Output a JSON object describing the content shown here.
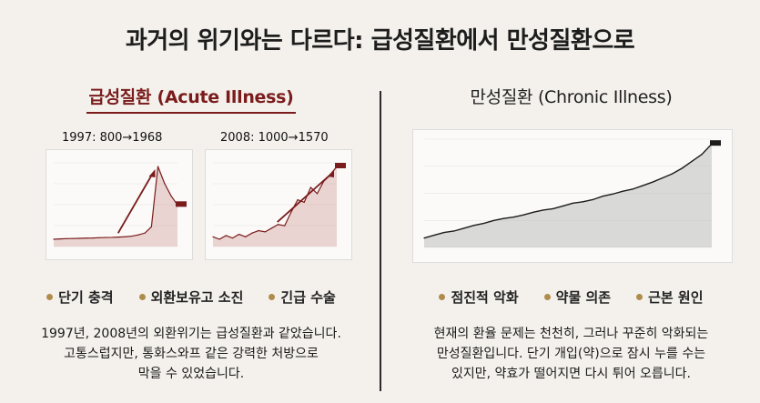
{
  "title": "과거의 위기와는 다르다: 급성질환에서 만성질환으로",
  "left": {
    "heading": "급성질환 (Acute Illness)",
    "charts": [
      {
        "caption": "1997: 800→1968"
      },
      {
        "caption": "2008: 1000→1570"
      }
    ],
    "bullets": [
      "단기 충격",
      "외환보유고 소진",
      "긴급 수술"
    ],
    "body": [
      "1997년, 2008년의 외환위기는 급성질환과 같았습니다.",
      "고통스럽지만, 통화스와프 같은 강력한 처방으로",
      "막을 수 있었습니다."
    ]
  },
  "right": {
    "heading": "만성질환 (Chronic Illness)",
    "bullets": [
      "점진적 악화",
      "약물 의존",
      "근본 원인"
    ],
    "body": [
      "현재의 환율 문제는 천천히, 그러나 꾸준히 악화되는",
      "만성질환입니다. 단기 개입(약)으로 잠시 누를 수는",
      "있지만, 약효가 떨어지면 다시 튀어 오릅니다."
    ]
  },
  "colors": {
    "accent": "#7a1c1c",
    "bullet": "#b08c4c"
  },
  "chart_data": [
    {
      "type": "line",
      "title": "1997: 800→1968",
      "x": [
        0,
        1,
        2,
        3,
        4,
        5,
        6,
        7,
        8,
        9,
        10,
        11,
        12,
        13,
        14,
        15,
        16,
        17,
        18,
        19
      ],
      "values": [
        800,
        805,
        810,
        812,
        815,
        818,
        820,
        825,
        828,
        830,
        835,
        840,
        850,
        870,
        900,
        1000,
        1968,
        1700,
        1500,
        1350
      ]
    },
    {
      "type": "line",
      "title": "2008: 1000→1570",
      "x": [
        0,
        1,
        2,
        3,
        4,
        5,
        6,
        7,
        8,
        9,
        10,
        11,
        12,
        13,
        14,
        15,
        16,
        17,
        18,
        19
      ],
      "values": [
        1000,
        980,
        1010,
        990,
        1020,
        1000,
        1030,
        1050,
        1040,
        1070,
        1100,
        1090,
        1200,
        1300,
        1280,
        1400,
        1350,
        1450,
        1500,
        1570
      ]
    },
    {
      "type": "area",
      "title": "",
      "x": [
        0,
        1,
        2,
        3,
        4,
        5,
        6,
        7,
        8,
        9,
        10,
        11,
        12,
        13,
        14,
        15,
        16,
        17,
        18,
        19,
        20,
        21,
        22,
        23,
        24,
        25,
        26,
        27,
        28,
        29
      ],
      "values": [
        100,
        104,
        108,
        110,
        114,
        118,
        121,
        125,
        128,
        130,
        133,
        137,
        140,
        142,
        146,
        150,
        152,
        155,
        160,
        163,
        167,
        170,
        175,
        180,
        186,
        192,
        200,
        210,
        220,
        235
      ]
    }
  ]
}
